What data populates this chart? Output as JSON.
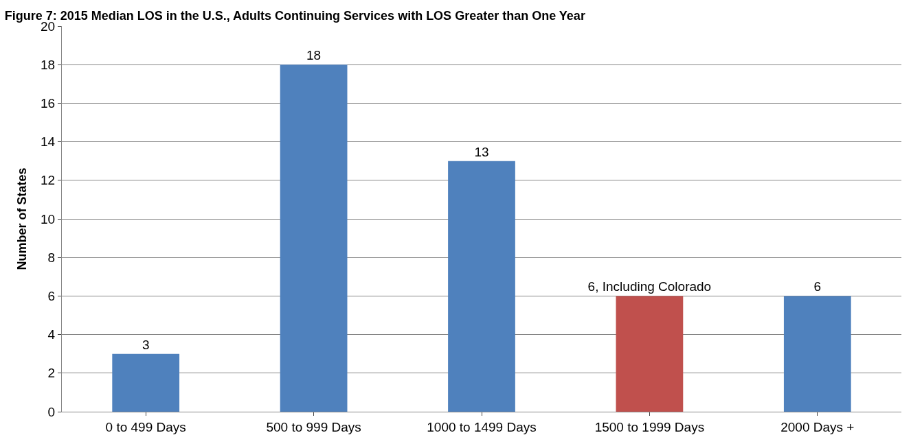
{
  "chart_data": {
    "type": "bar",
    "title": "Figure 7: 2015 Median LOS in the U.S., Adults Continuing Services with LOS Greater than One Year",
    "ylabel": "Number of States",
    "categories": [
      "0 to 499 Days",
      "500 to 999 Days",
      "1000 to 1499 Days",
      "1500 to 1999 Days",
      "2000 Days +"
    ],
    "values": [
      3,
      18,
      13,
      6,
      6
    ],
    "colors": [
      "#4f81bd",
      "#4f81bd",
      "#4f81bd",
      "#c0504d",
      "#4f81bd"
    ],
    "value_labels": [
      "3",
      "18",
      "13",
      "6, Including Colorado",
      "6"
    ],
    "ylim": [
      0,
      20
    ],
    "yticks": [
      0,
      2,
      4,
      6,
      8,
      10,
      12,
      14,
      16,
      18,
      20
    ],
    "grid": "y"
  }
}
